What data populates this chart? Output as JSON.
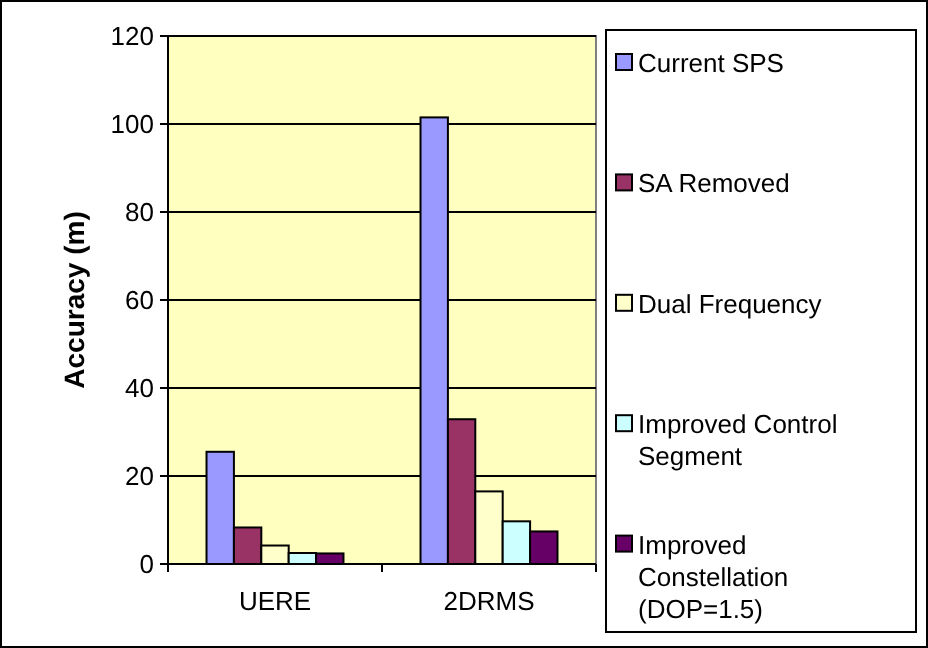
{
  "chart_data": {
    "type": "bar",
    "ylabel": "Accuracy (m)",
    "categories": [
      "UERE",
      "2DRMS"
    ],
    "series": [
      {
        "name": "Current SPS",
        "color": "#9999ff",
        "values": [
          25.5,
          101.5
        ]
      },
      {
        "name": "SA Removed",
        "color": "#993366",
        "values": [
          8.3,
          32.9
        ]
      },
      {
        "name": "Dual Frequency",
        "color": "#ffffcc",
        "values": [
          4.2,
          16.5
        ]
      },
      {
        "name": "Improved Control Segment",
        "color": "#ccffff",
        "values": [
          2.5,
          9.7
        ]
      },
      {
        "name": "Improved Constellation (DOP=1.5)",
        "color": "#660066",
        "values": [
          2.4,
          7.4
        ]
      }
    ],
    "ylim": [
      0,
      120
    ],
    "yticks": [
      0,
      20,
      40,
      60,
      80,
      100,
      120
    ],
    "grid": "y",
    "legend": "right"
  }
}
